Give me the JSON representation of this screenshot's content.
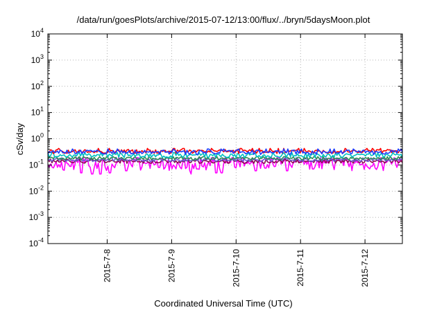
{
  "chart_data": {
    "type": "line",
    "title": "/data/run/goesPlots/archive/2015-07-12/13:00/flux/../bryn/5daysMoon.plot",
    "xlabel": "Coordinated Universal Time (UTC)",
    "ylabel": "cSv/day",
    "y_scale": "log",
    "ylim_exp": [
      -4,
      4
    ],
    "y_ticks": [
      {
        "base": "10",
        "exp": "4"
      },
      {
        "base": "10",
        "exp": "3"
      },
      {
        "base": "10",
        "exp": "2"
      },
      {
        "base": "10",
        "exp": "1"
      },
      {
        "base": "10",
        "exp": "0"
      },
      {
        "base": "10",
        "exp": "-1"
      },
      {
        "base": "10",
        "exp": "-2"
      },
      {
        "base": "10",
        "exp": "-3"
      },
      {
        "base": "10",
        "exp": "-4"
      }
    ],
    "xlim_days": [
      7.08,
      12.58
    ],
    "x_ticks": [
      {
        "label": "2015-7-8",
        "day": 8
      },
      {
        "label": "2015-7-9",
        "day": 9
      },
      {
        "label": "2015-7-10",
        "day": 10
      },
      {
        "label": "2015-7-11",
        "day": 11
      },
      {
        "label": "2015-7-12",
        "day": 12
      }
    ],
    "grid": true,
    "legend": "none",
    "series": [
      {
        "color": "#ff00ff",
        "base": 0.11,
        "jitter": 0.05,
        "dips": [
          [
            7.6,
            0.05
          ],
          [
            7.77,
            0.045
          ],
          [
            7.9,
            0.045
          ],
          [
            8.05,
            0.05
          ],
          [
            8.3,
            0.06
          ],
          [
            8.8,
            0.08
          ],
          [
            9.3,
            0.045
          ],
          [
            9.4,
            0.07
          ],
          [
            9.7,
            0.05
          ],
          [
            9.78,
            0.05
          ],
          [
            10.3,
            0.06
          ],
          [
            10.8,
            0.06
          ],
          [
            11.2,
            0.07
          ],
          [
            12.1,
            0.09
          ]
        ]
      },
      {
        "color": "#8b0a50",
        "base": 0.135,
        "jitter": 0.02,
        "dips": []
      },
      {
        "color": "#6a5acd",
        "base": 0.155,
        "jitter": 0.02,
        "dips": []
      },
      {
        "color": "#2e8b57",
        "base": 0.175,
        "jitter": 0.02,
        "dips": []
      },
      {
        "color": "#00bfbf",
        "base": 0.23,
        "jitter": 0.04,
        "dips": []
      },
      {
        "color": "#ff0000",
        "base": 0.33,
        "jitter": 0.06,
        "dips": []
      },
      {
        "color": "#1e3cff",
        "base": 0.31,
        "jitter": 0.06,
        "dips": []
      }
    ]
  }
}
